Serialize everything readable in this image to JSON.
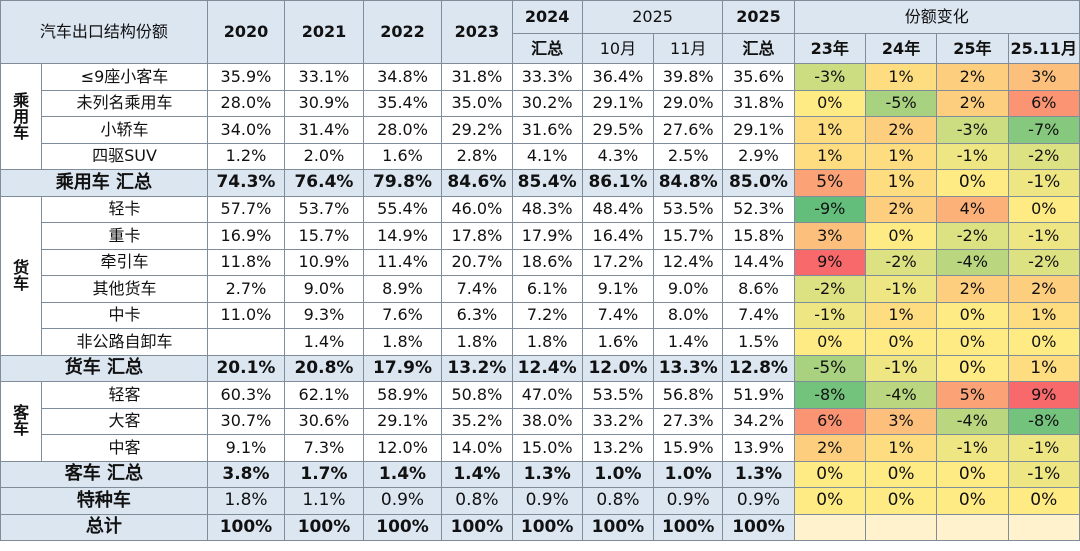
{
  "title": "汽车出口结构份额",
  "columns": {
    "y2020": "2020",
    "y2021": "2021",
    "y2022": "2022",
    "y2023": "2023",
    "y2024_top": "2024",
    "y2024_bottom": "汇总",
    "y2025_group": "2025",
    "oct": "10月",
    "nov": "11月",
    "y2025_top": "2025",
    "y2025_bottom": "汇总",
    "change_group": "份额变化",
    "c23": "23年",
    "c24": "24年",
    "c25": "25年",
    "c2511": "25.11月"
  },
  "groups": {
    "passenger": [
      "乘",
      "用",
      "车"
    ],
    "truck": [
      "货",
      "车"
    ],
    "bus": [
      "客",
      "车"
    ]
  },
  "colors": {
    "header_bg": "#dce6f1",
    "change_empty_bg": "#fff2cc",
    "scale_low": "#63be7b",
    "scale_mid": "#ffeb84",
    "scale_high": "#f8696b"
  },
  "rows": [
    {
      "name": "≤9座小客车",
      "group": "passenger",
      "vals": [
        "35.9%",
        "33.1%",
        "34.8%",
        "31.8%",
        "33.3%",
        "36.4%",
        "39.8%",
        "35.6%"
      ],
      "chg": [
        "-3%",
        "1%",
        "2%",
        "3%"
      ],
      "chgNum": [
        -3,
        1,
        2,
        3
      ]
    },
    {
      "name": "未列名乘用车",
      "group": "passenger",
      "vals": [
        "28.0%",
        "30.9%",
        "35.4%",
        "35.0%",
        "30.2%",
        "29.1%",
        "29.0%",
        "31.8%"
      ],
      "chg": [
        "0%",
        "-5%",
        "2%",
        "6%"
      ],
      "chgNum": [
        0,
        -5,
        2,
        6
      ]
    },
    {
      "name": "小轿车",
      "group": "passenger",
      "vals": [
        "34.0%",
        "31.4%",
        "28.0%",
        "29.2%",
        "31.6%",
        "29.5%",
        "27.6%",
        "29.1%"
      ],
      "chg": [
        "1%",
        "2%",
        "-3%",
        "-7%"
      ],
      "chgNum": [
        1,
        2,
        -3,
        -7
      ]
    },
    {
      "name": "四驱SUV",
      "group": "passenger",
      "vals": [
        "1.2%",
        "2.0%",
        "1.6%",
        "2.8%",
        "4.1%",
        "4.3%",
        "2.5%",
        "2.9%"
      ],
      "chg": [
        "1%",
        "1%",
        "-1%",
        "-2%"
      ],
      "chgNum": [
        1,
        1,
        -1,
        -2
      ]
    },
    {
      "name": "乘用车 汇总",
      "summary": true,
      "vals": [
        "74.3%",
        "76.4%",
        "79.8%",
        "84.6%",
        "85.4%",
        "86.1%",
        "84.8%",
        "85.0%"
      ],
      "chg": [
        "5%",
        "1%",
        "0%",
        "-1%"
      ],
      "chgNum": [
        5,
        1,
        0,
        -1
      ]
    },
    {
      "name": "轻卡",
      "group": "truck",
      "vals": [
        "57.7%",
        "53.7%",
        "55.4%",
        "46.0%",
        "48.3%",
        "48.4%",
        "53.5%",
        "52.3%"
      ],
      "chg": [
        "-9%",
        "2%",
        "4%",
        "0%"
      ],
      "chgNum": [
        -9,
        2,
        4,
        0
      ]
    },
    {
      "name": "重卡",
      "group": "truck",
      "vals": [
        "16.9%",
        "15.7%",
        "14.9%",
        "17.8%",
        "17.9%",
        "16.4%",
        "15.7%",
        "15.8%"
      ],
      "chg": [
        "3%",
        "0%",
        "-2%",
        "-1%"
      ],
      "chgNum": [
        3,
        0,
        -2,
        -1
      ]
    },
    {
      "name": "牵引车",
      "group": "truck",
      "vals": [
        "11.8%",
        "10.9%",
        "11.4%",
        "20.7%",
        "18.6%",
        "17.2%",
        "12.4%",
        "14.4%"
      ],
      "chg": [
        "9%",
        "-2%",
        "-4%",
        "-2%"
      ],
      "chgNum": [
        9,
        -2,
        -4,
        -2
      ]
    },
    {
      "name": "其他货车",
      "group": "truck",
      "vals": [
        "2.7%",
        "9.0%",
        "8.9%",
        "7.4%",
        "6.1%",
        "9.1%",
        "9.0%",
        "8.6%"
      ],
      "chg": [
        "-2%",
        "-1%",
        "2%",
        "2%"
      ],
      "chgNum": [
        -2,
        -1,
        2,
        2
      ]
    },
    {
      "name": "中卡",
      "group": "truck",
      "vals": [
        "11.0%",
        "9.3%",
        "7.6%",
        "6.3%",
        "7.2%",
        "7.4%",
        "8.0%",
        "7.4%"
      ],
      "chg": [
        "-1%",
        "1%",
        "0%",
        "1%"
      ],
      "chgNum": [
        -1,
        1,
        0,
        1
      ]
    },
    {
      "name": "非公路自卸车",
      "group": "truck",
      "vals": [
        "",
        "1.4%",
        "1.8%",
        "1.8%",
        "1.8%",
        "1.6%",
        "1.4%",
        "1.5%"
      ],
      "chg": [
        "0%",
        "0%",
        "0%",
        "0%"
      ],
      "chgNum": [
        0,
        0,
        0,
        0
      ]
    },
    {
      "name": "货车 汇总",
      "summary": true,
      "vals": [
        "20.1%",
        "20.8%",
        "17.9%",
        "13.2%",
        "12.4%",
        "12.0%",
        "13.3%",
        "12.8%"
      ],
      "chg": [
        "-5%",
        "-1%",
        "0%",
        "1%"
      ],
      "chgNum": [
        -5,
        -1,
        0,
        1
      ]
    },
    {
      "name": "轻客",
      "group": "bus",
      "vals": [
        "60.3%",
        "62.1%",
        "58.9%",
        "50.8%",
        "47.0%",
        "53.5%",
        "56.8%",
        "51.9%"
      ],
      "chg": [
        "-8%",
        "-4%",
        "5%",
        "9%"
      ],
      "chgNum": [
        -8,
        -4,
        5,
        9
      ]
    },
    {
      "name": "大客",
      "group": "bus",
      "vals": [
        "30.7%",
        "30.6%",
        "29.1%",
        "35.2%",
        "38.0%",
        "33.2%",
        "27.3%",
        "34.2%"
      ],
      "chg": [
        "6%",
        "3%",
        "-4%",
        "-8%"
      ],
      "chgNum": [
        6,
        3,
        -4,
        -8
      ]
    },
    {
      "name": "中客",
      "group": "bus",
      "vals": [
        "9.1%",
        "7.3%",
        "12.0%",
        "14.0%",
        "15.0%",
        "13.2%",
        "15.9%",
        "13.9%"
      ],
      "chg": [
        "2%",
        "1%",
        "-1%",
        "-1%"
      ],
      "chgNum": [
        2,
        1,
        -1,
        -1
      ]
    },
    {
      "name": "客车 汇总",
      "summary": true,
      "vals": [
        "3.8%",
        "1.7%",
        "1.4%",
        "1.4%",
        "1.3%",
        "1.0%",
        "1.0%",
        "1.3%"
      ],
      "chg": [
        "0%",
        "0%",
        "0%",
        "-1%"
      ],
      "chgNum": [
        0,
        0,
        0,
        -1
      ]
    },
    {
      "name": "特种车",
      "summary": true,
      "normalValues": true,
      "vals": [
        "1.8%",
        "1.1%",
        "0.9%",
        "0.8%",
        "0.9%",
        "0.8%",
        "0.9%",
        "0.9%"
      ],
      "chg": [
        "0%",
        "0%",
        "0%",
        "0%"
      ],
      "chgNum": [
        0,
        0,
        0,
        0
      ]
    },
    {
      "name": "总计",
      "summary": true,
      "vals": [
        "100%",
        "100%",
        "100%",
        "100%",
        "100%",
        "100%",
        "100%",
        "100%"
      ],
      "chg": [
        "",
        "",
        "",
        ""
      ],
      "chgNum": [
        null,
        null,
        null,
        null
      ]
    }
  ]
}
